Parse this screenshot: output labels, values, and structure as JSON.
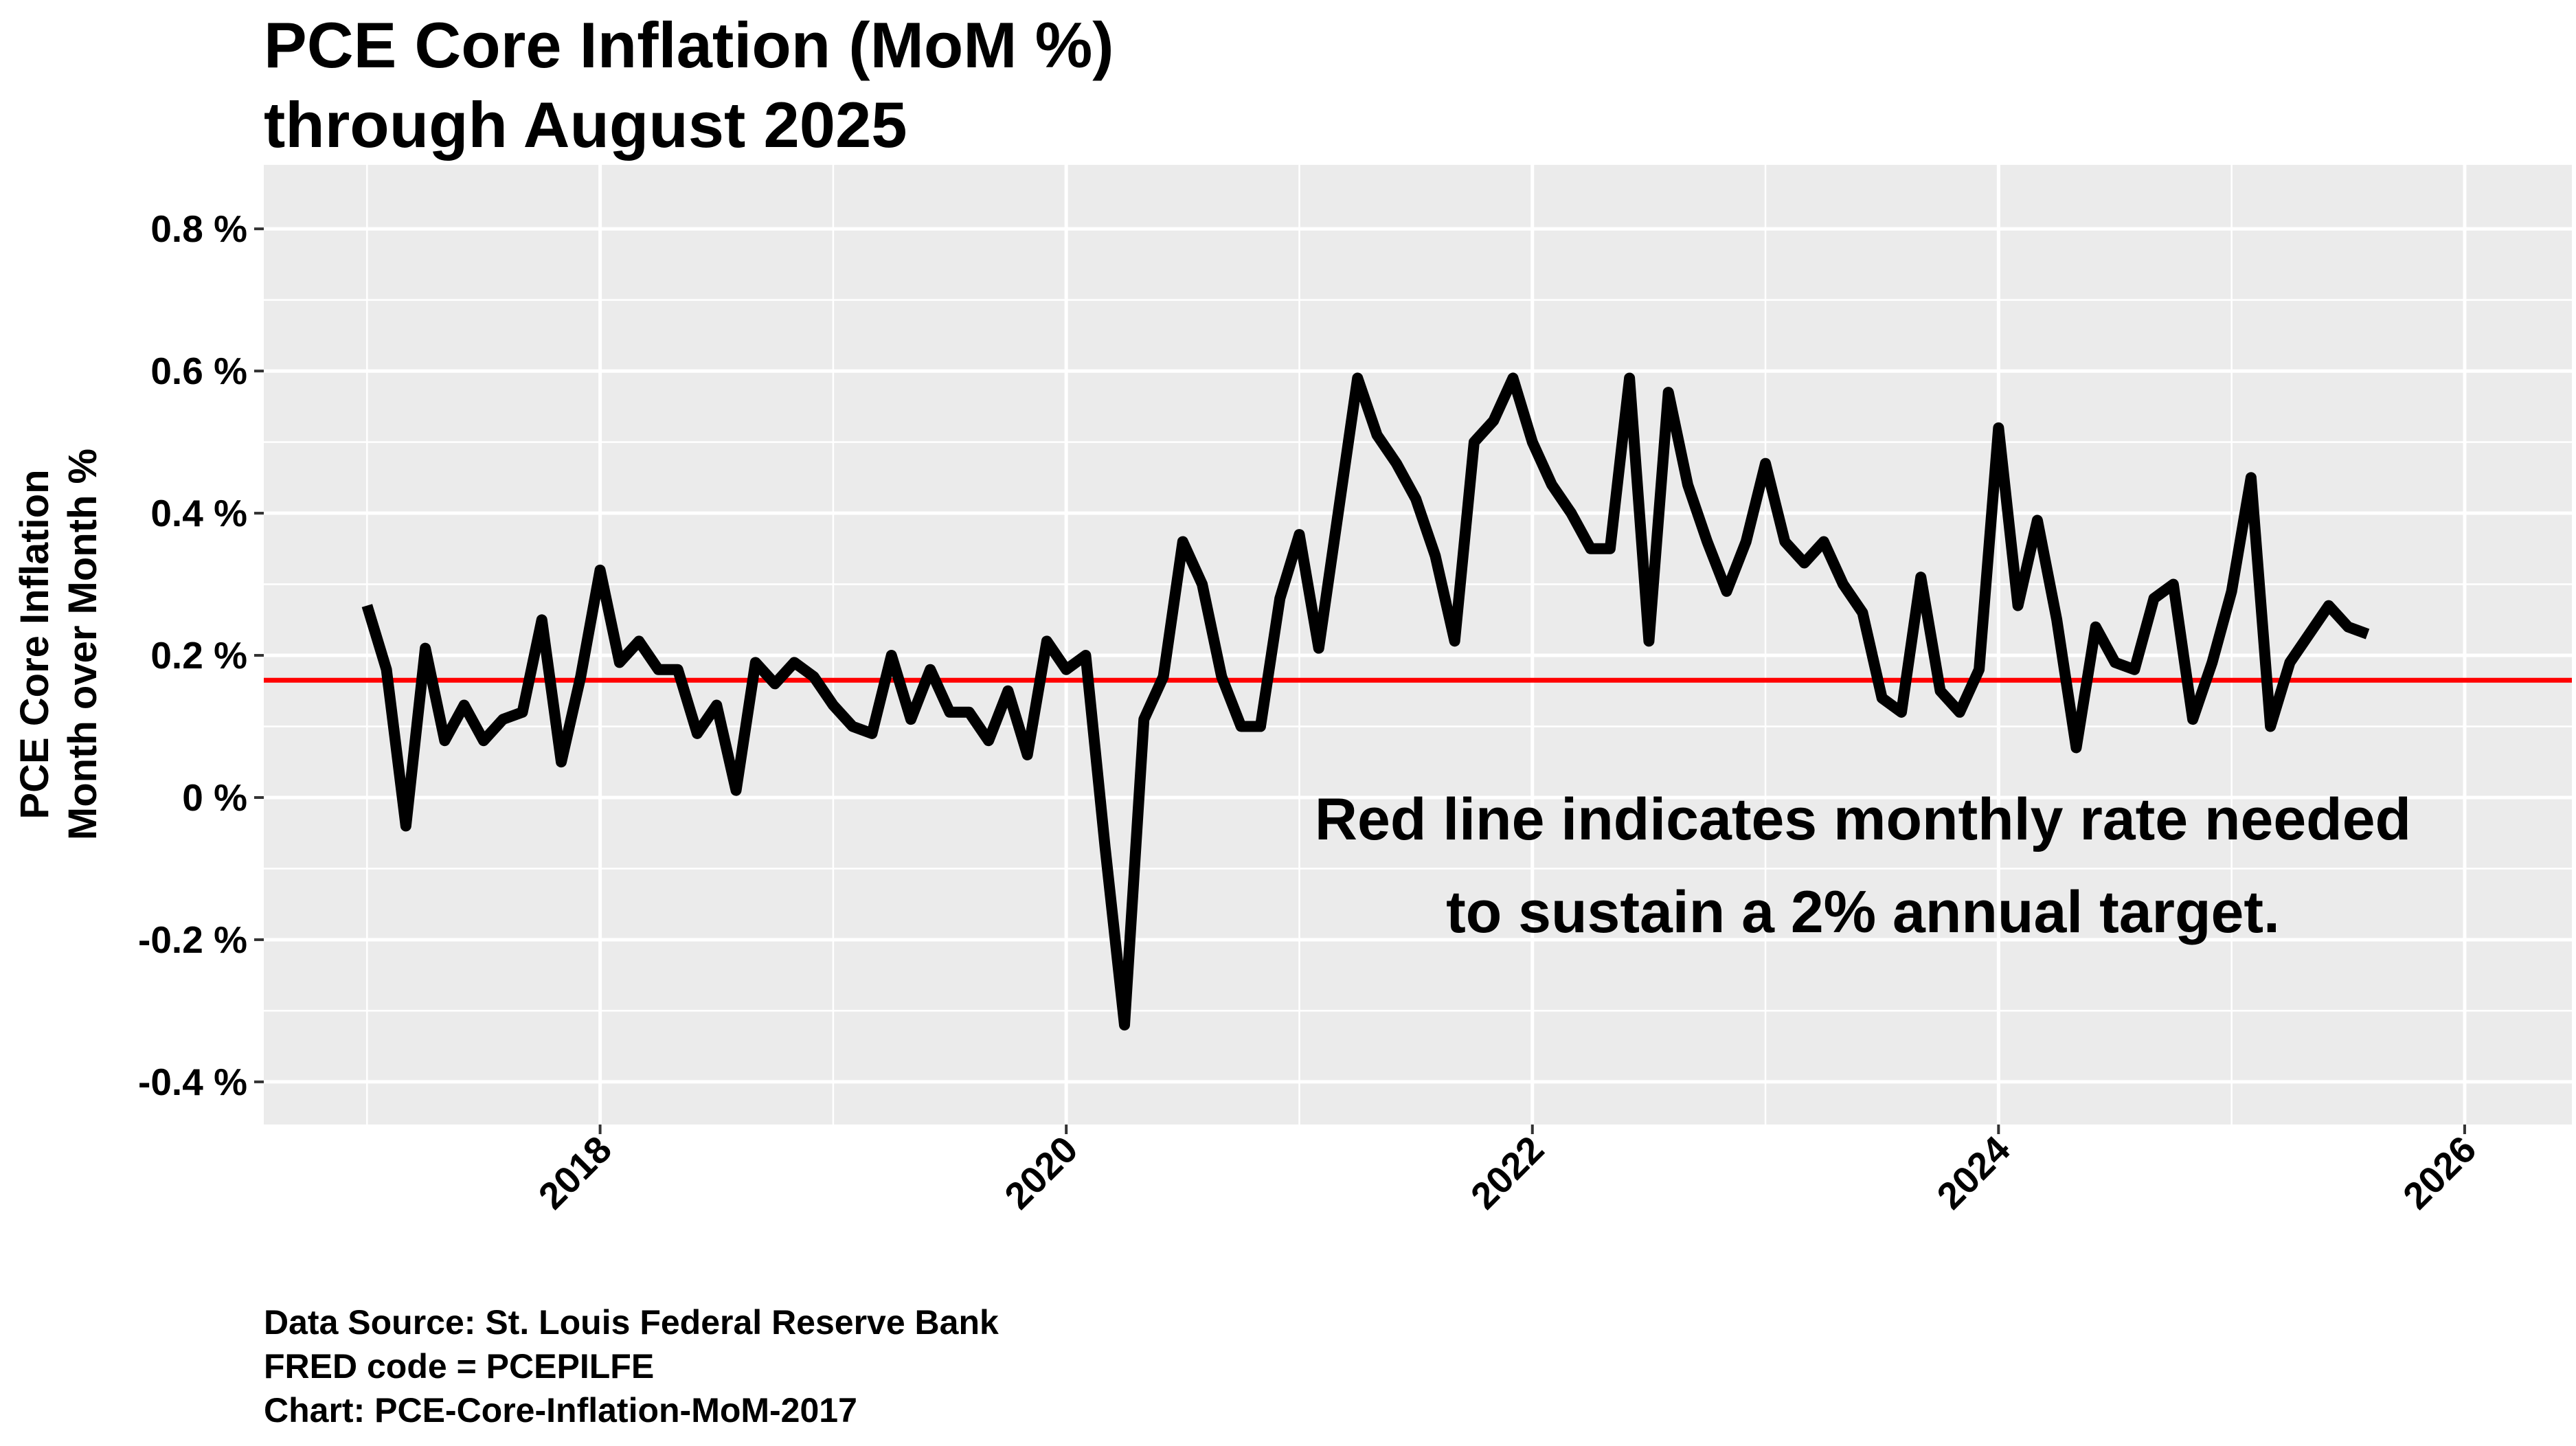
{
  "chart_data": {
    "type": "line",
    "title": [
      "PCE Core Inflation (MoM %)",
      "through August 2025"
    ],
    "ylabel": [
      "PCE Core Inflation",
      "Month over Month %"
    ],
    "xlabel": "",
    "ylim": [
      -0.46,
      0.89
    ],
    "y_ticks": [
      -0.4,
      -0.2,
      0,
      0.2,
      0.4,
      0.6,
      0.8
    ],
    "y_tick_labels": [
      "-0.4 %",
      "-0.2 %",
      "0 %",
      "0.2 %",
      "0.4 %",
      "0.6 %",
      "0.8 %"
    ],
    "x_ticks": [
      2018,
      2020,
      2022,
      2024,
      2026
    ],
    "x_tick_labels": [
      "2018",
      "2020",
      "2022",
      "2024",
      "2026"
    ],
    "grid": true,
    "background": "#EBEBEB",
    "series": [
      {
        "color": "#000000",
        "start": "2017-01",
        "frequency": "monthly",
        "values": [
          0.27,
          0.18,
          -0.04,
          0.21,
          0.08,
          0.13,
          0.08,
          0.11,
          0.12,
          0.25,
          0.05,
          0.17,
          0.32,
          0.19,
          0.22,
          0.18,
          0.18,
          0.09,
          0.13,
          0.01,
          0.19,
          0.16,
          0.19,
          0.17,
          0.13,
          0.1,
          0.09,
          0.2,
          0.11,
          0.18,
          0.12,
          0.12,
          0.08,
          0.15,
          0.06,
          0.22,
          0.18,
          0.2,
          -0.07,
          -0.32,
          0.11,
          0.17,
          0.36,
          0.3,
          0.17,
          0.1,
          0.1,
          0.28,
          0.37,
          0.21,
          0.4,
          0.59,
          0.51,
          0.47,
          0.42,
          0.34,
          0.22,
          0.5,
          0.53,
          0.59,
          0.5,
          0.44,
          0.4,
          0.35,
          0.35,
          0.59,
          0.22,
          0.57,
          0.44,
          0.36,
          0.29,
          0.36,
          0.47,
          0.36,
          0.33,
          0.36,
          0.3,
          0.26,
          0.14,
          0.12,
          0.31,
          0.15,
          0.12,
          0.18,
          0.52,
          0.27,
          0.39,
          0.25,
          0.07,
          0.24,
          0.19,
          0.18,
          0.28,
          0.3,
          0.11,
          0.19,
          0.29,
          0.45,
          0.1,
          0.19,
          0.23,
          0.27,
          0.24,
          0.23
        ]
      }
    ],
    "reference_line": {
      "value": 0.165,
      "color": "#FF0000"
    },
    "annotation": [
      "Red line indicates monthly rate needed",
      "to sustain a 2% annual target."
    ]
  },
  "footer": {
    "lines": [
      "Data Source:  St. Louis Federal Reserve Bank",
      "FRED code = PCEPILFE",
      "Chart: PCE-Core-Inflation-MoM-2017"
    ]
  }
}
